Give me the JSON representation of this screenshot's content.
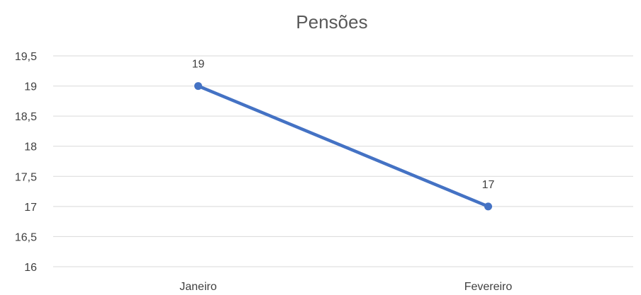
{
  "chart_data": {
    "type": "line",
    "title": "Pensões",
    "xlabel": "",
    "ylabel": "",
    "categories": [
      "Janeiro",
      "Fevereiro"
    ],
    "series": [
      {
        "values": [
          19,
          17
        ],
        "color": "#4472c4"
      }
    ],
    "data_labels": [
      "19",
      "17"
    ],
    "ylim": [
      16,
      19.5
    ],
    "yticks": [
      16,
      16.5,
      17,
      17.5,
      18,
      18.5,
      19,
      19.5
    ],
    "ytick_labels": [
      "16",
      "16,5",
      "17",
      "17,5",
      "18",
      "18,5",
      "19",
      "19,5"
    ],
    "grid": true,
    "legend": "none"
  }
}
